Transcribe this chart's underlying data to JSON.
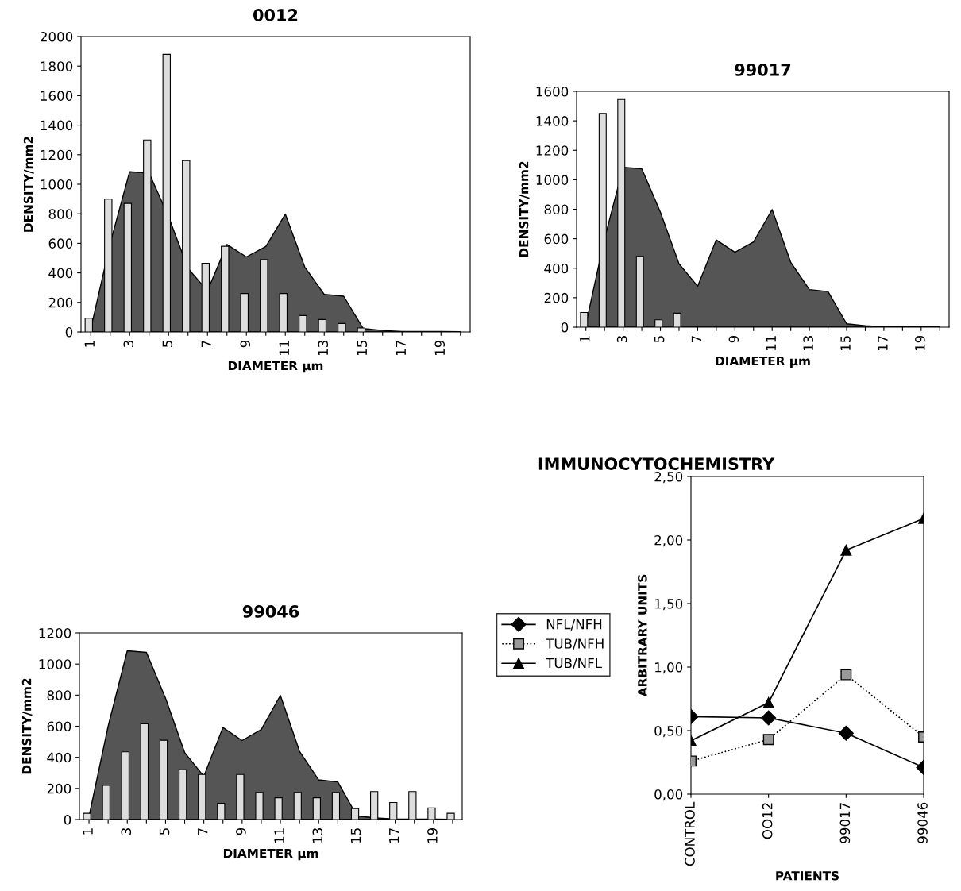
{
  "chart_data": [
    {
      "type": "bar",
      "title": "0012",
      "xlabel": "DIAMETER µm",
      "ylabel": "DENSITY/mm2",
      "categories": [
        "1",
        null,
        "3",
        null,
        "5",
        null,
        "7",
        null,
        "9",
        null,
        "11",
        null,
        "13",
        null,
        "15",
        null,
        "17",
        null,
        "19",
        null
      ],
      "series": [
        {
          "type": "area",
          "color": "#555555",
          "values": [
            20,
            600,
            1085,
            1075,
            780,
            430,
            278,
            592,
            508,
            579,
            798,
            439,
            255,
            242,
            23,
            10,
            3,
            3,
            3,
            2
          ]
        },
        {
          "type": "bar",
          "color": "#dddddd",
          "values": [
            93,
            900,
            870,
            1300,
            1880,
            1160,
            465,
            580,
            260,
            490,
            260,
            111,
            84,
            57,
            27,
            null,
            null,
            null,
            null,
            null
          ]
        }
      ],
      "ylim": [
        0,
        2000
      ],
      "yticks": [
        0,
        200,
        400,
        600,
        800,
        1000,
        1200,
        1400,
        1600,
        1800,
        2000
      ]
    },
    {
      "type": "bar",
      "title": "99017",
      "xlabel": "DIAMETER µm",
      "ylabel": "DENSITY/mm2",
      "categories": [
        "1",
        null,
        "3",
        null,
        "5",
        null,
        "7",
        null,
        "9",
        null,
        "11",
        null,
        "13",
        null,
        "15",
        null,
        "17",
        null,
        "19",
        null
      ],
      "series": [
        {
          "type": "area",
          "color": "#555555",
          "values": [
            20,
            600,
            1085,
            1075,
            780,
            430,
            278,
            592,
            508,
            579,
            798,
            439,
            255,
            242,
            23,
            10,
            3,
            3,
            3,
            2
          ]
        },
        {
          "type": "bar",
          "color": "#dddddd",
          "values": [
            100,
            1450,
            1545,
            480,
            50,
            95,
            null,
            null,
            null,
            null,
            null,
            null,
            null,
            null,
            null,
            null,
            null,
            null,
            null,
            null
          ]
        }
      ],
      "ylim": [
        0,
        1600
      ],
      "yticks": [
        0,
        200,
        400,
        600,
        800,
        1000,
        1200,
        1400,
        1600
      ]
    },
    {
      "type": "bar",
      "title": "99046",
      "xlabel": "DIAMETER µm",
      "ylabel": "DENSITY/mm2",
      "categories": [
        "1",
        null,
        "3",
        null,
        "5",
        null,
        "7",
        null,
        "9",
        null,
        "11",
        null,
        "13",
        null,
        "15",
        null,
        "17",
        null,
        "19",
        null
      ],
      "series": [
        {
          "type": "area",
          "color": "#555555",
          "values": [
            20,
            600,
            1085,
            1075,
            780,
            430,
            278,
            592,
            508,
            579,
            798,
            439,
            255,
            242,
            23,
            10,
            3,
            3,
            3,
            2
          ]
        },
        {
          "type": "bar",
          "color": "#dddddd",
          "values": [
            40,
            220,
            435,
            615,
            510,
            320,
            290,
            105,
            290,
            175,
            140,
            175,
            140,
            175,
            70,
            180,
            110,
            180,
            75,
            40
          ]
        }
      ],
      "ylim": [
        0,
        1200
      ],
      "yticks": [
        0,
        200,
        400,
        600,
        800,
        1000,
        1200
      ]
    },
    {
      "type": "line",
      "title": "IMMUNOCYTOCHEMISTRY",
      "xlabel": "PATIENTS",
      "ylabel": "ARBITRARY UNITS",
      "categories": [
        "CONTROL",
        "OO12",
        "99017",
        "99046"
      ],
      "series": [
        {
          "name": "NFL/NFH",
          "color": "#000000",
          "marker": "diamond",
          "line_style": "solid",
          "values": [
            0.61,
            0.6,
            0.48,
            0.21
          ]
        },
        {
          "name": "TUB/NFH",
          "color": "#000000",
          "marker": "square",
          "line_style": "dotted",
          "values": [
            0.26,
            0.43,
            0.94,
            0.45
          ]
        },
        {
          "name": "TUB/NFL",
          "color": "#000000",
          "marker": "triangle",
          "line_style": "solid",
          "values": [
            0.42,
            0.72,
            1.92,
            2.17
          ]
        }
      ],
      "ylim": [
        0,
        2.5
      ],
      "yticks": [
        {
          "value": 0,
          "label": "0,00"
        },
        {
          "value": 0.5,
          "label": "0,50"
        },
        {
          "value": 1,
          "label": "1,00"
        },
        {
          "value": 1.5,
          "label": "1,50"
        },
        {
          "value": 2,
          "label": "2,00"
        },
        {
          "value": 2.5,
          "label": "2,50"
        }
      ],
      "legend": "left"
    }
  ]
}
